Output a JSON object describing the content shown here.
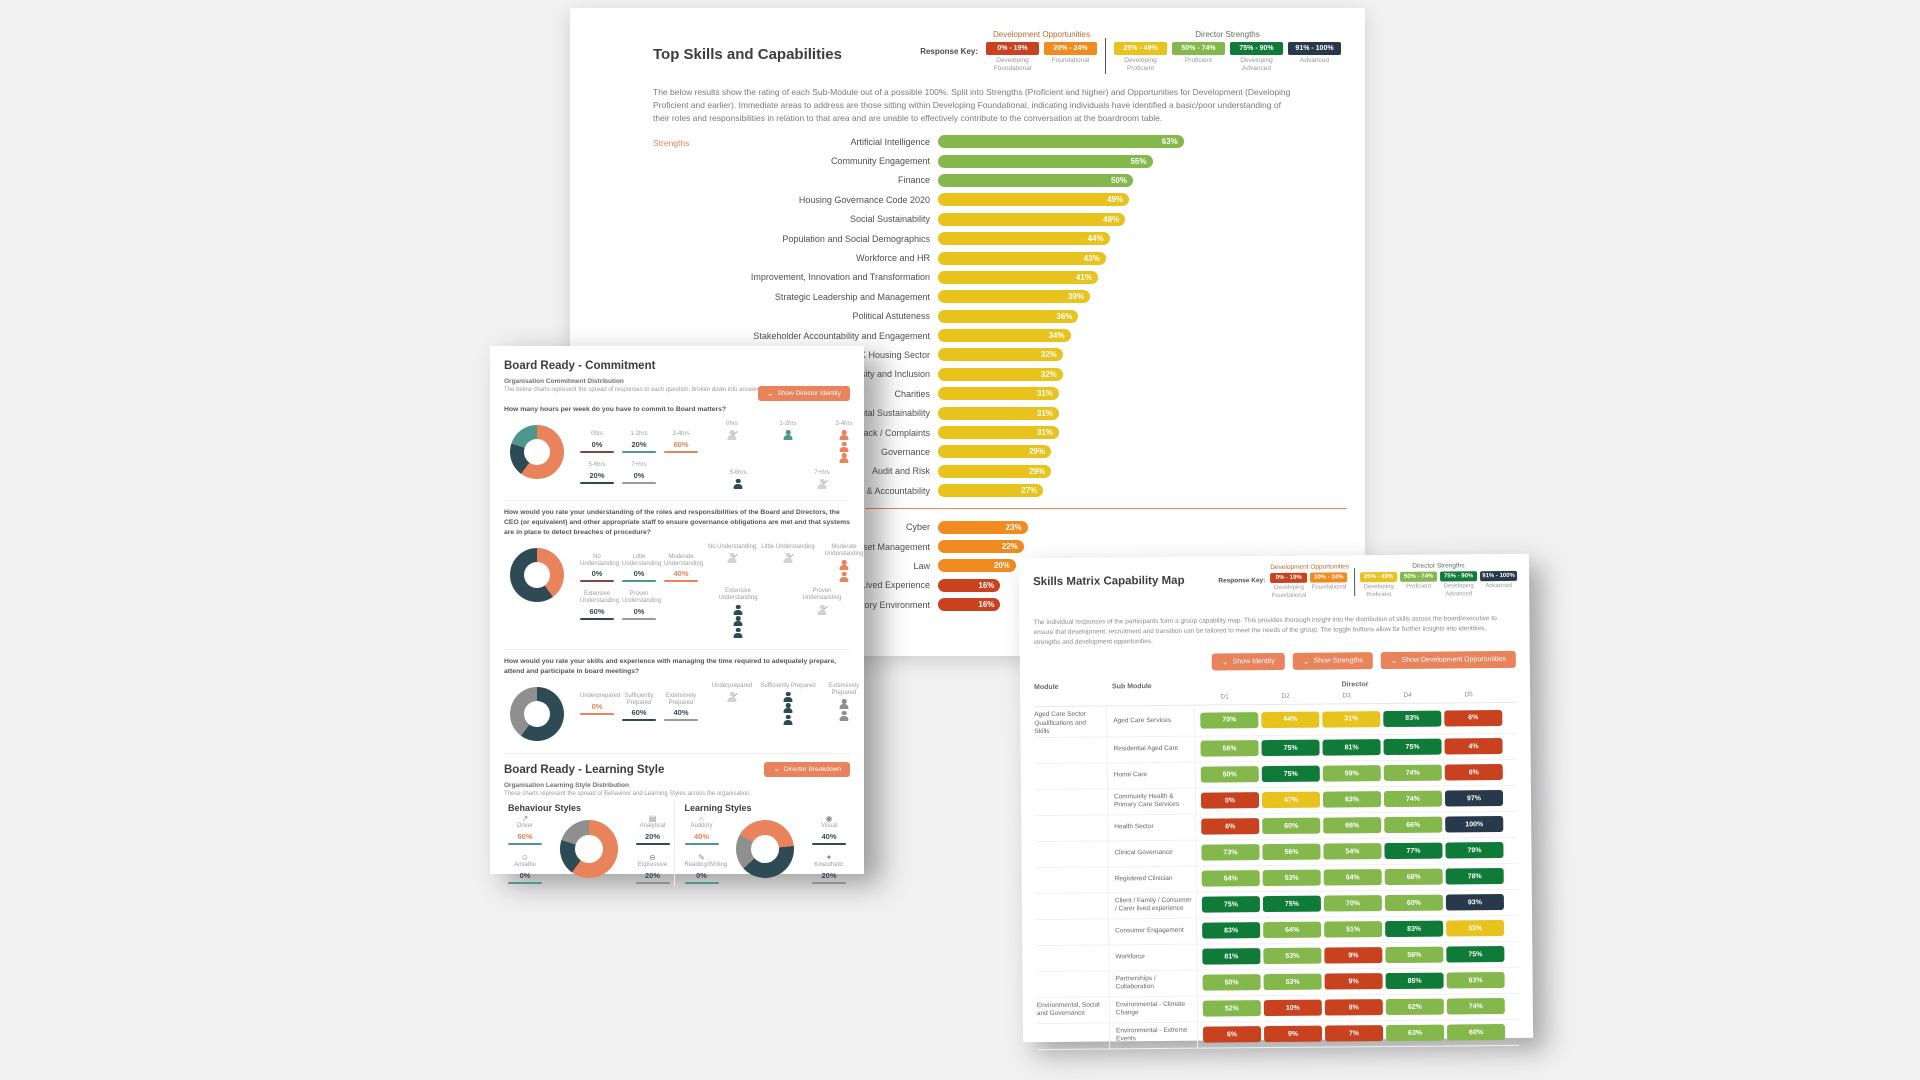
{
  "colors": {
    "accent": "#e8835c",
    "teal": "#4d978c",
    "navy": "#2e4a54",
    "gray": "#8f8f8f",
    "maroon": "#7d4a43",
    "red": "#c8421f",
    "orange": "#f08b1f",
    "yellow": "#e8c21d",
    "green": "#85b84c",
    "dark_green": "#107b38",
    "dark_navy": "#27394b"
  },
  "thresholds": [
    {
      "max": 19,
      "color": "#c8421f"
    },
    {
      "max": 24,
      "color": "#f08b1f"
    },
    {
      "max": 49,
      "color": "#e8c21d"
    },
    {
      "max": 74,
      "color": "#85b84c"
    },
    {
      "max": 90,
      "color": "#107b38"
    },
    {
      "max": 100,
      "color": "#27394b"
    }
  ],
  "response_key": {
    "label": "Response Key:",
    "groups": [
      {
        "title": "Development Opportunities",
        "title_color": "#bf6a2e",
        "items": [
          {
            "range": "0% - 19%",
            "label": "Developing Foundational",
            "color": "#c8421f"
          },
          {
            "range": "20% - 24%",
            "label": "Foundational",
            "color": "#f08b1f"
          }
        ]
      },
      {
        "title": "Director Strengths",
        "title_color": "#5f7360",
        "items": [
          {
            "range": "25% - 49%",
            "label": "Developing Proficient",
            "color": "#e8c21d"
          },
          {
            "range": "50% - 74%",
            "label": "Proficient",
            "color": "#85b84c"
          },
          {
            "range": "75% - 90%",
            "label": "Developing Advanced",
            "color": "#107b38"
          },
          {
            "range": "91% - 100%",
            "label": "Advanced",
            "color": "#27394b"
          }
        ]
      }
    ]
  },
  "top_skills": {
    "title": "Top Skills and Capabilities",
    "intro": "The below results show the rating of each Sub-Module out of a possible 100%. Split into Strengths (Proficient and higher) and Opportunities for Development (Developing Proficient and earlier). Immediate areas to address are those sitting within Developing Foundational, indicating individuals have identified a basic/poor understanding of their roles and responsibilities in relation to that area and are unable to effectively contribute to the conversation at the boardroom table.",
    "section_label": "Strengths"
  },
  "board_commitment": {
    "title": "Board Ready - Commitment",
    "subtitle1": "Organisation Commitment Distribution",
    "subtitle2": "The below charts represent the spread of responses to each question, broken down into answers and participants.",
    "button_label": "Show Director Identity",
    "questions": [
      {
        "text": "How many hours per week do you have to commit to Board matters?",
        "chart_id": "commitment_hours",
        "stat_rows": [
          [
            {
              "label": "0hrs",
              "value": "0%",
              "color": "#7d4a43"
            },
            {
              "label": "1-2hrs",
              "value": "20%",
              "color": "#4d978c"
            },
            {
              "label": "3-4hrs",
              "value": "60%",
              "color": "#e8835c",
              "hot": true
            }
          ],
          [
            {
              "label": "5-6hrs",
              "value": "20%",
              "color": "#2e4a54"
            },
            {
              "label": "7+hrs",
              "value": "0%",
              "color": "#9a9a9a"
            }
          ]
        ],
        "icon_rows": [
          [
            {
              "label": "0hrs",
              "count": 0
            },
            {
              "label": "1-2hrs",
              "count": 1,
              "color": "#4d978c"
            },
            {
              "label": "3-4hrs",
              "count": 3,
              "color": "#e8835c"
            }
          ],
          [
            {
              "label": "5-6hrs",
              "count": 1,
              "color": "#2e4a54"
            },
            {
              "label": "7+hrs",
              "count": 0
            }
          ]
        ]
      },
      {
        "text": "How would you rate your understanding of the roles and responsibilities of the Board and Directors, the CEO (or equivalent) and other appropriate staff to ensure governance obligations are met and that systems are in place to detect breaches of procedure?",
        "chart_id": "commitment_understanding",
        "stat_rows": [
          [
            {
              "label": "No Understanding",
              "value": "0%",
              "color": "#7d4a43"
            },
            {
              "label": "Little Understanding",
              "value": "0%",
              "color": "#4d978c"
            },
            {
              "label": "Moderate Understanding",
              "value": "40%",
              "color": "#e8835c",
              "hot": true
            }
          ],
          [
            {
              "label": "Extensive Understanding",
              "value": "60%",
              "color": "#2e4a54"
            },
            {
              "label": "Proven Understanding",
              "value": "0%",
              "color": "#9a9a9a"
            }
          ]
        ],
        "icon_rows": [
          [
            {
              "label": "No Understanding",
              "count": 0
            },
            {
              "label": "Little Understanding",
              "count": 0
            },
            {
              "label": "Moderate Understanding",
              "count": 2,
              "color": "#e8835c"
            }
          ],
          [
            {
              "label": "Extensive Understanding",
              "count": 3,
              "color": "#2e4a54"
            },
            {
              "label": "Proven Understanding",
              "count": 0
            }
          ]
        ]
      },
      {
        "text": "How would you rate your skills and experience with managing the time required to adequately prepare, attend and participate in board meetings?",
        "chart_id": "commitment_preparation",
        "stat_rows": [
          [
            {
              "label": "Underprepared",
              "value": "0%",
              "color": "#e8835c",
              "hot": true
            },
            {
              "label": "Sufficiently Prepared",
              "value": "60%",
              "color": "#2e4a54"
            },
            {
              "label": "Extensively Prepared",
              "value": "40%",
              "color": "#9a9a9a"
            }
          ]
        ],
        "icon_rows": [
          [
            {
              "label": "Underprepared",
              "count": 0
            },
            {
              "label": "Sufficiently Prepared",
              "count": 3,
              "color": "#2e4a54"
            },
            {
              "label": "Extensively Prepared",
              "count": 2,
              "color": "#8f8f8f"
            }
          ]
        ]
      }
    ]
  },
  "board_learning": {
    "title": "Board Ready - Learning Style",
    "subtitle1": "Organisation Learning Style Distribution",
    "subtitle2": "These charts represent the spread of Behaviour and Learning Styles across the organisation.",
    "button_label": "Director Breakdown",
    "cards": [
      {
        "title": "Behaviour Styles",
        "chart_id": "behaviour_styles",
        "left": [
          {
            "icon": "↗",
            "icon_name": "trend-up-icon",
            "label": "Driver",
            "value": "60%",
            "color": "#4d978c",
            "hot": true
          },
          {
            "icon": "☺",
            "icon_name": "people-icon",
            "label": "Amiable",
            "value": "0%",
            "color": "#4d978c"
          }
        ],
        "right": [
          {
            "icon": "▤",
            "icon_name": "bar-chart-icon",
            "label": "Analytical",
            "value": "20%",
            "color": "#2e4a54"
          },
          {
            "icon": "⊖",
            "icon_name": "speech-icon",
            "label": "Expressive",
            "value": "20%",
            "color": "#8f8f8f"
          }
        ]
      },
      {
        "title": "Learning Styles",
        "chart_id": "learning_styles",
        "left": [
          {
            "icon": "∩",
            "icon_name": "headphones-icon",
            "label": "Auditory",
            "value": "40%",
            "color": "#4d978c",
            "hot": true
          },
          {
            "icon": "✎",
            "icon_name": "book-icon",
            "label": "Reading/Writing",
            "value": "0%",
            "color": "#4d978c"
          }
        ],
        "right": [
          {
            "icon": "◉",
            "icon_name": "eye-icon",
            "label": "Visual",
            "value": "40%",
            "color": "#2e4a54"
          },
          {
            "icon": "✦",
            "icon_name": "hand-icon",
            "label": "Kinesthetic",
            "value": "20%",
            "color": "#8f8f8f"
          }
        ]
      }
    ]
  },
  "skills_matrix": {
    "title": "Skills Matrix Capability Map",
    "intro": "The individual responses of the participants form a group capability map. This provides thorough insight into the distribution of skills across the board/executive to ensure that development, recruitment and transition can be tailored to meet the needs of the group. The toggle buttons allow for further insights into identities, strengths and development opportunities.",
    "buttons": [
      "Show Identity",
      "Show Strengths",
      "Show Development Opportunities"
    ],
    "headers": {
      "module": "Module",
      "sub": "Sub Module",
      "group": "Director"
    }
  },
  "chart_data": [
    {
      "id": "top_skills_bars",
      "type": "bar",
      "orientation": "horizontal",
      "title": "Top Skills and Capabilities",
      "xlabel": "",
      "ylabel": "",
      "xlim": [
        0,
        100
      ],
      "unit": "%",
      "legend": "color by response-key threshold (0-19 red, 20-24 orange, 25-49 yellow, 50-74 green)",
      "divider_after_index": 18,
      "categories": [
        "Artificial Intelligence",
        "Community Engagement",
        "Finance",
        "Housing Governance Code 2020",
        "Social Sustainability",
        "Population and Social Demographics",
        "Workforce and HR",
        "Improvement, Innovation and Transformation",
        "Strategic Leadership and Management",
        "Political Astuteness",
        "Stakeholder Accountability and Engagement",
        "UK Housing Sector",
        "Diversity and Inclusion",
        "Charities",
        "Environmental Sustainability",
        "Feedback / Complaints",
        "Governance",
        "Audit and Risk",
        "Reporting & Accountability",
        "Cyber",
        "Asset Management",
        "Law",
        "Lived Experience",
        "Regulatory Environment"
      ],
      "values": [
        63,
        55,
        50,
        49,
        48,
        44,
        43,
        41,
        39,
        36,
        34,
        32,
        32,
        31,
        31,
        31,
        29,
        29,
        27,
        23,
        22,
        20,
        16,
        16
      ]
    },
    {
      "id": "commitment_hours",
      "type": "pie",
      "donut": true,
      "rotate": -72,
      "labels": [
        "0hrs",
        "1-2hrs",
        "3-4hrs",
        "5-6hrs",
        "7+hrs"
      ],
      "values": [
        0,
        20,
        60,
        20,
        0
      ],
      "colors": [
        "#7d4a43",
        "#4d978c",
        "#e8835c",
        "#2e4a54",
        "#8f8f8f"
      ]
    },
    {
      "id": "commitment_understanding",
      "type": "pie",
      "donut": true,
      "rotate": 0,
      "labels": [
        "No Understanding",
        "Little Understanding",
        "Moderate Understanding",
        "Extensive Understanding",
        "Proven Understanding"
      ],
      "values": [
        0,
        0,
        40,
        60,
        0
      ],
      "colors": [
        "#7d4a43",
        "#4d978c",
        "#e8835c",
        "#2e4a54",
        "#8f8f8f"
      ]
    },
    {
      "id": "commitment_preparation",
      "type": "pie",
      "donut": true,
      "rotate": 0,
      "labels": [
        "Underprepared",
        "Sufficiently Prepared",
        "Extensively Prepared"
      ],
      "values": [
        0,
        60,
        40
      ],
      "colors": [
        "#e8835c",
        "#2e4a54",
        "#8f8f8f"
      ]
    },
    {
      "id": "behaviour_styles",
      "type": "pie",
      "donut": true,
      "rotate": 0,
      "labels": [
        "Driver",
        "Analytical",
        "Amiable",
        "Expressive"
      ],
      "values": [
        60,
        20,
        0,
        20
      ],
      "colors": [
        "#e8835c",
        "#2e4a54",
        "#4d978c",
        "#8f8f8f"
      ]
    },
    {
      "id": "learning_styles",
      "type": "pie",
      "donut": true,
      "rotate": -60,
      "labels": [
        "Auditory",
        "Visual",
        "Reading/Writing",
        "Kinesthetic"
      ],
      "values": [
        40,
        40,
        0,
        20
      ],
      "colors": [
        "#e8835c",
        "#2e4a54",
        "#4d978c",
        "#8f8f8f"
      ]
    },
    {
      "id": "skills_matrix",
      "type": "heatmap",
      "unit": "%",
      "columns": [
        "D1",
        "D2",
        "D3",
        "D4",
        "D5"
      ],
      "rows": [
        {
          "module": "Aged Care Sector Qualifications and Skills",
          "sub": "Aged Care Services",
          "values": [
            70,
            44,
            31,
            83,
            6
          ]
        },
        {
          "module": "",
          "sub": "Residential Aged Care",
          "values": [
            56,
            75,
            81,
            75,
            4
          ]
        },
        {
          "module": "",
          "sub": "Home Care",
          "values": [
            50,
            75,
            69,
            74,
            6
          ]
        },
        {
          "module": "",
          "sub": "Community Health & Primary Care Services",
          "values": [
            0,
            47,
            63,
            74,
            97
          ]
        },
        {
          "module": "",
          "sub": "Health Sector",
          "values": [
            6,
            60,
            66,
            66,
            100
          ]
        },
        {
          "module": "",
          "sub": "Clinical Governance",
          "values": [
            73,
            56,
            54,
            77,
            79
          ]
        },
        {
          "module": "",
          "sub": "Registered Clinician",
          "values": [
            64,
            53,
            64,
            68,
            78
          ]
        },
        {
          "module": "",
          "sub": "Client / Family / Consumer / Carer lived experience",
          "values": [
            75,
            75,
            70,
            60,
            93
          ]
        },
        {
          "module": "",
          "sub": "Consumer Engagement",
          "values": [
            83,
            64,
            51,
            83,
            33
          ]
        },
        {
          "module": "",
          "sub": "Workforce",
          "values": [
            81,
            53,
            9,
            56,
            75
          ]
        },
        {
          "module": "",
          "sub": "Partnerships / Collaboration",
          "values": [
            50,
            63,
            9,
            85,
            63
          ]
        },
        {
          "module": "Environmental, Social and Governance",
          "sub": "Environmental - Climate Change",
          "values": [
            52,
            10,
            8,
            62,
            74
          ]
        },
        {
          "module": "",
          "sub": "Environmental - Extreme Events",
          "values": [
            6,
            9,
            7,
            63,
            60
          ]
        }
      ]
    }
  ]
}
